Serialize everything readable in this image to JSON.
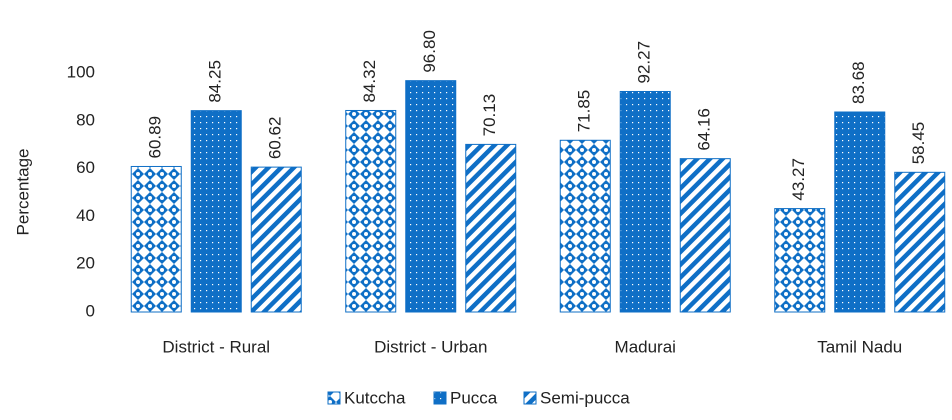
{
  "chart_data": {
    "type": "bar",
    "y_label": "Percentage",
    "categories": [
      "District - Rural",
      "District - Urban",
      "Madurai",
      "Tamil Nadu"
    ],
    "series": [
      {
        "name": "Kutccha",
        "color": "#0f6fc6",
        "pattern": "diamonds",
        "values": [
          60.89,
          84.32,
          71.85,
          43.27
        ],
        "value_labels": [
          "60.89",
          "84.32",
          "71.85",
          "43.27"
        ]
      },
      {
        "name": "Pucca",
        "color": "#0f6fc6",
        "pattern": "dots",
        "values": [
          84.25,
          96.8,
          92.27,
          83.68
        ],
        "value_labels": [
          "84.25",
          "96.80",
          "92.27",
          "83.68"
        ]
      },
      {
        "name": "Semi-pucca",
        "color": "#0f6fc6",
        "pattern": "stripes",
        "values": [
          60.62,
          70.13,
          64.16,
          58.45
        ],
        "value_labels": [
          "60.62",
          "70.13",
          "64.16",
          "58.45"
        ]
      }
    ],
    "ylim": [
      0,
      100
    ],
    "yticks": [
      0,
      20,
      40,
      60,
      80,
      100
    ],
    "grid": false,
    "legend": "bottom"
  }
}
